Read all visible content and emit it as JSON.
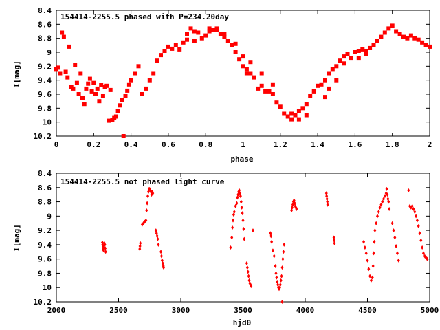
{
  "chart_data": [
    {
      "type": "scatter",
      "title": "154414-2255.5 phased with P=234.20day",
      "xlabel": "phase",
      "ylabel": "I[mag]",
      "xlim": [
        0,
        2
      ],
      "ylim": [
        10.2,
        8.4
      ],
      "y_inverted": true,
      "xticks": [
        "0",
        "0.2",
        "0.4",
        "0.6",
        "0.8",
        "1",
        "1.2",
        "1.4",
        "1.6",
        "1.8",
        "2"
      ],
      "yticks": [
        "8.4",
        "8.6",
        "8.8",
        "9",
        "9.2",
        "9.4",
        "9.6",
        "9.8",
        "10",
        "10.2"
      ],
      "marker": "filled-square",
      "color": "#ff0000",
      "points": [
        [
          0.0,
          9.24
        ],
        [
          0.01,
          9.22
        ],
        [
          0.02,
          9.3
        ],
        [
          0.03,
          8.72
        ],
        [
          0.04,
          8.78
        ],
        [
          0.05,
          9.28
        ],
        [
          0.06,
          9.36
        ],
        [
          0.07,
          8.92
        ],
        [
          0.08,
          9.5
        ],
        [
          0.09,
          9.52
        ],
        [
          0.1,
          9.18
        ],
        [
          0.11,
          9.44
        ],
        [
          0.12,
          9.6
        ],
        [
          0.13,
          9.3
        ],
        [
          0.14,
          9.65
        ],
        [
          0.15,
          9.74
        ],
        [
          0.16,
          9.52
        ],
        [
          0.17,
          9.45
        ],
        [
          0.18,
          9.38
        ],
        [
          0.19,
          9.56
        ],
        [
          0.2,
          9.44
        ],
        [
          0.21,
          9.6
        ],
        [
          0.22,
          9.52
        ],
        [
          0.23,
          9.7
        ],
        [
          0.24,
          9.47
        ],
        [
          0.25,
          9.62
        ],
        [
          0.26,
          9.5
        ],
        [
          0.27,
          9.48
        ],
        [
          0.28,
          9.98
        ],
        [
          0.29,
          9.54
        ],
        [
          0.3,
          9.97
        ],
        [
          0.31,
          9.94
        ],
        [
          0.32,
          9.92
        ],
        [
          0.33,
          9.84
        ],
        [
          0.34,
          9.76
        ],
        [
          0.35,
          9.68
        ],
        [
          0.36,
          10.2
        ],
        [
          0.37,
          9.62
        ],
        [
          0.38,
          9.55
        ],
        [
          0.39,
          9.46
        ],
        [
          0.4,
          9.4
        ],
        [
          0.42,
          9.3
        ],
        [
          0.44,
          9.2
        ],
        [
          0.46,
          9.6
        ],
        [
          0.48,
          9.52
        ],
        [
          0.5,
          9.4
        ],
        [
          0.52,
          9.3
        ],
        [
          0.54,
          9.12
        ],
        [
          0.56,
          9.04
        ],
        [
          0.58,
          8.98
        ],
        [
          0.6,
          8.92
        ],
        [
          0.62,
          8.95
        ],
        [
          0.64,
          8.9
        ],
        [
          0.66,
          8.96
        ],
        [
          0.68,
          8.86
        ],
        [
          0.7,
          8.74
        ],
        [
          0.72,
          8.66
        ],
        [
          0.74,
          8.84
        ],
        [
          0.76,
          8.72
        ],
        [
          0.78,
          8.8
        ],
        [
          0.8,
          8.76
        ],
        [
          0.82,
          8.7
        ],
        [
          0.84,
          8.68
        ],
        [
          0.86,
          8.66
        ],
        [
          0.88,
          8.74
        ],
        [
          0.9,
          8.78
        ],
        [
          0.92,
          8.84
        ],
        [
          0.94,
          8.9
        ],
        [
          0.96,
          9.0
        ],
        [
          0.98,
          9.1
        ],
        [
          1.0,
          9.2
        ],
        [
          1.02,
          9.24
        ],
        [
          1.04,
          9.3
        ],
        [
          1.06,
          9.36
        ],
        [
          1.08,
          9.52
        ],
        [
          1.1,
          9.48
        ],
        [
          1.12,
          9.56
        ],
        [
          1.14,
          9.56
        ],
        [
          1.16,
          9.6
        ],
        [
          1.18,
          9.72
        ],
        [
          1.2,
          9.78
        ],
        [
          1.22,
          9.88
        ],
        [
          1.24,
          9.92
        ],
        [
          1.26,
          9.96
        ],
        [
          1.28,
          9.9
        ],
        [
          1.3,
          9.84
        ],
        [
          1.32,
          9.8
        ],
        [
          1.34,
          9.74
        ],
        [
          1.36,
          9.62
        ],
        [
          1.38,
          9.56
        ],
        [
          1.4,
          9.48
        ],
        [
          1.42,
          9.46
        ],
        [
          1.44,
          9.4
        ],
        [
          1.46,
          9.3
        ],
        [
          1.48,
          9.24
        ],
        [
          1.5,
          9.2
        ],
        [
          1.52,
          9.12
        ],
        [
          1.54,
          9.06
        ],
        [
          1.56,
          9.02
        ],
        [
          1.58,
          9.08
        ],
        [
          1.6,
          9.0
        ],
        [
          1.62,
          8.98
        ],
        [
          1.64,
          8.96
        ],
        [
          1.66,
          8.98
        ],
        [
          1.68,
          8.94
        ],
        [
          1.7,
          8.9
        ],
        [
          1.72,
          8.84
        ],
        [
          1.74,
          8.78
        ],
        [
          1.76,
          8.72
        ],
        [
          1.78,
          8.66
        ],
        [
          1.8,
          8.62
        ],
        [
          1.82,
          8.7
        ],
        [
          1.84,
          8.74
        ],
        [
          1.86,
          8.78
        ],
        [
          1.88,
          8.8
        ],
        [
          1.9,
          8.76
        ],
        [
          1.92,
          8.8
        ],
        [
          1.94,
          8.82
        ],
        [
          1.96,
          8.86
        ],
        [
          1.98,
          8.9
        ],
        [
          2.0,
          8.92
        ],
        [
          1.02,
          9.3
        ],
        [
          1.26,
          9.88
        ],
        [
          1.3,
          9.96
        ],
        [
          1.34,
          9.9
        ],
        [
          1.44,
          9.64
        ],
        [
          1.46,
          9.52
        ],
        [
          1.5,
          9.4
        ],
        [
          1.54,
          9.16
        ],
        [
          1.62,
          9.08
        ],
        [
          1.66,
          9.02
        ],
        [
          0.9,
          8.74
        ],
        [
          0.86,
          8.68
        ],
        [
          0.82,
          8.66
        ],
        [
          0.96,
          8.88
        ],
        [
          1.0,
          9.06
        ],
        [
          1.04,
          9.14
        ],
        [
          1.1,
          9.3
        ],
        [
          1.16,
          9.46
        ],
        [
          0.7,
          8.82
        ],
        [
          0.74,
          8.7
        ]
      ]
    },
    {
      "type": "scatter",
      "title": "154414-2255.5 not phased light curve",
      "xlabel": "hjd0",
      "ylabel": "I[mag]",
      "xlim": [
        2000,
        5000
      ],
      "ylim": [
        10.2,
        8.4
      ],
      "y_inverted": true,
      "xticks": [
        "2000",
        "2500",
        "3000",
        "3500",
        "4000",
        "4500",
        "5000"
      ],
      "yticks": [
        "8.4",
        "8.6",
        "8.8",
        "9",
        "9.2",
        "9.4",
        "9.6",
        "9.8",
        "10",
        "10.2"
      ],
      "marker": "filled-diamond",
      "color": "#ff0000",
      "points": [
        [
          2370,
          9.37
        ],
        [
          2372,
          9.4
        ],
        [
          2375,
          9.42
        ],
        [
          2378,
          9.46
        ],
        [
          2380,
          9.48
        ],
        [
          2383,
          9.44
        ],
        [
          2386,
          9.38
        ],
        [
          2390,
          9.4
        ],
        [
          2393,
          9.45
        ],
        [
          2396,
          9.5
        ],
        [
          2670,
          9.46
        ],
        [
          2672,
          9.42
        ],
        [
          2675,
          9.38
        ],
        [
          2690,
          9.12
        ],
        [
          2700,
          9.1
        ],
        [
          2710,
          9.08
        ],
        [
          2720,
          9.06
        ],
        [
          2725,
          8.92
        ],
        [
          2730,
          8.82
        ],
        [
          2735,
          8.72
        ],
        [
          2740,
          8.66
        ],
        [
          2745,
          8.62
        ],
        [
          2750,
          8.62
        ],
        [
          2755,
          8.64
        ],
        [
          2760,
          8.66
        ],
        [
          2765,
          8.7
        ],
        [
          2770,
          8.66
        ],
        [
          2775,
          8.68
        ],
        [
          2800,
          9.2
        ],
        [
          2805,
          9.24
        ],
        [
          2810,
          9.28
        ],
        [
          2815,
          9.32
        ],
        [
          2820,
          9.4
        ],
        [
          2840,
          9.5
        ],
        [
          2845,
          9.56
        ],
        [
          2850,
          9.62
        ],
        [
          2855,
          9.66
        ],
        [
          2860,
          9.7
        ],
        [
          2862,
          9.72
        ],
        [
          3400,
          9.44
        ],
        [
          3410,
          9.3
        ],
        [
          3415,
          9.16
        ],
        [
          3420,
          9.06
        ],
        [
          3425,
          8.98
        ],
        [
          3430,
          8.94
        ],
        [
          3440,
          8.86
        ],
        [
          3450,
          8.82
        ],
        [
          3455,
          8.74
        ],
        [
          3460,
          8.7
        ],
        [
          3465,
          8.66
        ],
        [
          3470,
          8.64
        ],
        [
          3475,
          8.68
        ],
        [
          3480,
          8.72
        ],
        [
          3485,
          8.8
        ],
        [
          3490,
          8.88
        ],
        [
          3495,
          8.96
        ],
        [
          3500,
          9.06
        ],
        [
          3505,
          9.18
        ],
        [
          3510,
          9.32
        ],
        [
          3530,
          9.66
        ],
        [
          3535,
          9.72
        ],
        [
          3540,
          9.78
        ],
        [
          3545,
          9.84
        ],
        [
          3550,
          9.9
        ],
        [
          3555,
          9.94
        ],
        [
          3560,
          9.96
        ],
        [
          3565,
          9.98
        ],
        [
          3580,
          9.2
        ],
        [
          3720,
          9.24
        ],
        [
          3725,
          9.28
        ],
        [
          3730,
          9.36
        ],
        [
          3740,
          9.48
        ],
        [
          3750,
          9.56
        ],
        [
          3760,
          9.7
        ],
        [
          3765,
          9.8
        ],
        [
          3770,
          9.86
        ],
        [
          3775,
          9.92
        ],
        [
          3780,
          9.96
        ],
        [
          3785,
          10.0
        ],
        [
          3790,
          10.02
        ],
        [
          3795,
          10.0
        ],
        [
          3800,
          9.96
        ],
        [
          3805,
          9.9
        ],
        [
          3810,
          9.84
        ],
        [
          3815,
          9.72
        ],
        [
          3820,
          9.6
        ],
        [
          3825,
          9.5
        ],
        [
          3830,
          9.4
        ],
        [
          3815,
          10.2
        ],
        [
          3890,
          8.92
        ],
        [
          3895,
          8.88
        ],
        [
          3900,
          8.84
        ],
        [
          3905,
          8.8
        ],
        [
          3910,
          8.78
        ],
        [
          3915,
          8.82
        ],
        [
          3920,
          8.86
        ],
        [
          3925,
          8.88
        ],
        [
          3930,
          8.9
        ],
        [
          4170,
          8.68
        ],
        [
          4172,
          8.72
        ],
        [
          4175,
          8.76
        ],
        [
          4178,
          8.8
        ],
        [
          4180,
          8.84
        ],
        [
          4230,
          9.3
        ],
        [
          4232,
          9.34
        ],
        [
          4235,
          9.38
        ],
        [
          4470,
          9.36
        ],
        [
          4480,
          9.44
        ],
        [
          4490,
          9.52
        ],
        [
          4500,
          9.62
        ],
        [
          4510,
          9.74
        ],
        [
          4520,
          9.84
        ],
        [
          4530,
          9.9
        ],
        [
          4540,
          9.86
        ],
        [
          4545,
          9.7
        ],
        [
          4550,
          9.52
        ],
        [
          4555,
          9.36
        ],
        [
          4560,
          9.2
        ],
        [
          4570,
          9.1
        ],
        [
          4580,
          9.0
        ],
        [
          4590,
          8.94
        ],
        [
          4600,
          8.88
        ],
        [
          4610,
          8.84
        ],
        [
          4620,
          8.8
        ],
        [
          4630,
          8.76
        ],
        [
          4640,
          8.72
        ],
        [
          4650,
          8.68
        ],
        [
          4655,
          8.62
        ],
        [
          4660,
          8.7
        ],
        [
          4665,
          8.76
        ],
        [
          4670,
          8.8
        ],
        [
          4675,
          8.9
        ],
        [
          4700,
          9.1
        ],
        [
          4710,
          9.2
        ],
        [
          4720,
          9.3
        ],
        [
          4730,
          9.42
        ],
        [
          4740,
          9.52
        ],
        [
          4750,
          9.62
        ],
        [
          4830,
          8.64
        ],
        [
          4840,
          8.86
        ],
        [
          4850,
          8.88
        ],
        [
          4860,
          8.86
        ],
        [
          4870,
          8.9
        ],
        [
          4880,
          8.94
        ],
        [
          4890,
          9.0
        ],
        [
          4900,
          9.06
        ],
        [
          4910,
          9.14
        ],
        [
          4920,
          9.24
        ],
        [
          4930,
          9.34
        ],
        [
          4940,
          9.44
        ],
        [
          4950,
          9.52
        ],
        [
          4960,
          9.56
        ],
        [
          4970,
          9.58
        ],
        [
          4980,
          9.6
        ]
      ]
    }
  ]
}
